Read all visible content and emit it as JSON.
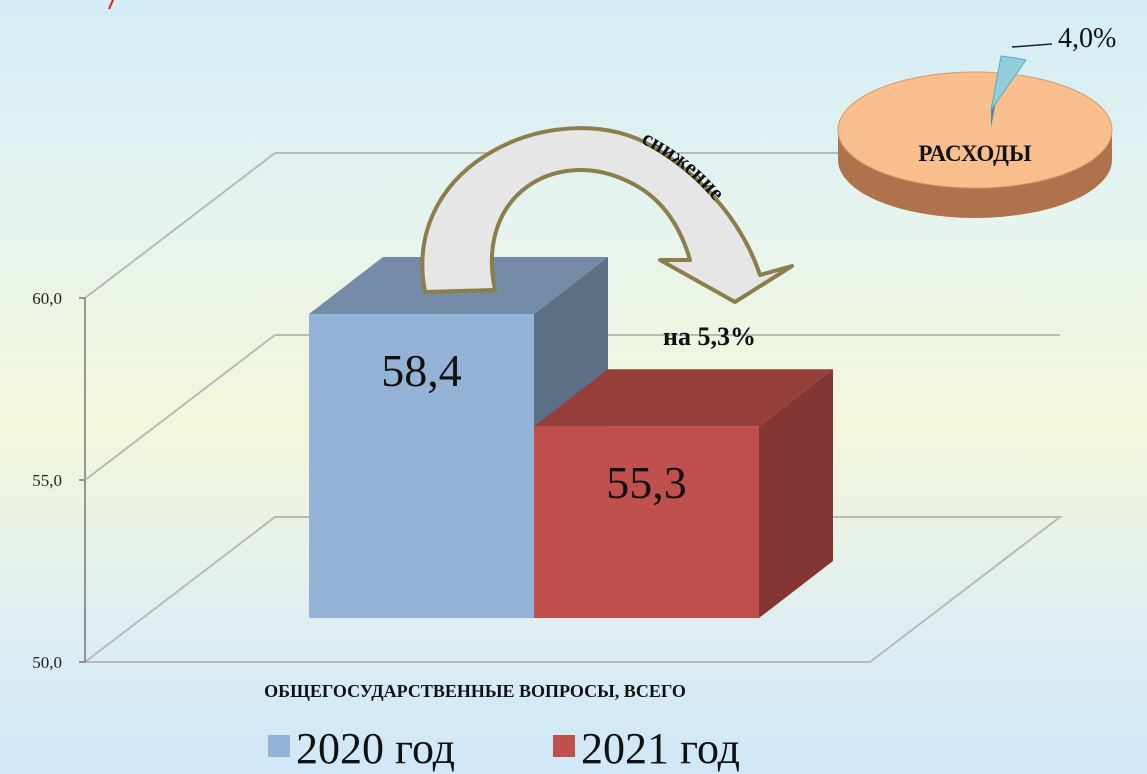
{
  "chart_data": {
    "type": "bar",
    "categories": [
      "ОБЩЕГОСУДАРСТВЕННЫЕ ВОПРОСЫ, ВСЕГО"
    ],
    "series": [
      {
        "name": "2020 год",
        "values": [
          58.4
        ],
        "label": "58,4",
        "color": "#95b3d7"
      },
      {
        "name": "2021 год",
        "values": [
          55.3
        ],
        "label": "55,3",
        "color": "#c0504d"
      }
    ],
    "ylim": [
      50,
      60
    ],
    "yticks": [
      "50,0",
      "55,0",
      "60,0"
    ],
    "grid": true,
    "legend_position": "bottom"
  },
  "annotation": {
    "arrow_text": "снижение",
    "change_text": "на 5,3%"
  },
  "pie": {
    "label": "РАСХОДЫ",
    "slice_percent": 4.0,
    "slice_label": "4,0%",
    "main_color": "#f9be8d",
    "slice_color": "#92cddc"
  }
}
